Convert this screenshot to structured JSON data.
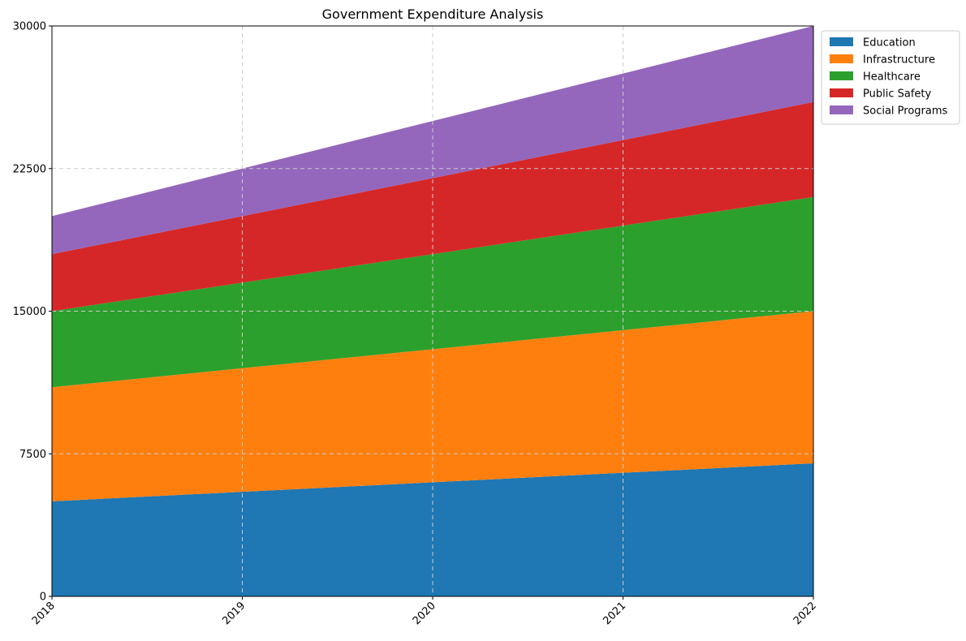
{
  "chart_data": {
    "type": "area",
    "stacked": true,
    "title": "Government Expenditure Analysis",
    "xlabel": "",
    "ylabel": "",
    "x": [
      "2018",
      "2019",
      "2020",
      "2021",
      "2022"
    ],
    "ylim": [
      0,
      30000
    ],
    "yticks": [
      "0",
      "7500",
      "15000",
      "22500",
      "30000"
    ],
    "grid": true,
    "legend_position": "upper-right-outside",
    "series": [
      {
        "name": "Education",
        "color": "#1f77b4",
        "values": [
          5000,
          5500,
          6000,
          6500,
          7000
        ]
      },
      {
        "name": "Infrastructure",
        "color": "#ff7f0e",
        "values": [
          6000,
          6500,
          7000,
          7500,
          8000
        ]
      },
      {
        "name": "Healthcare",
        "color": "#2ca02c",
        "values": [
          4000,
          4500,
          5000,
          5500,
          6000
        ]
      },
      {
        "name": "Public Safety",
        "color": "#d62728",
        "values": [
          3000,
          3500,
          4000,
          4500,
          5000
        ]
      },
      {
        "name": "Social Programs",
        "color": "#9467bd",
        "values": [
          2000,
          2500,
          3000,
          3500,
          4000
        ]
      }
    ]
  }
}
